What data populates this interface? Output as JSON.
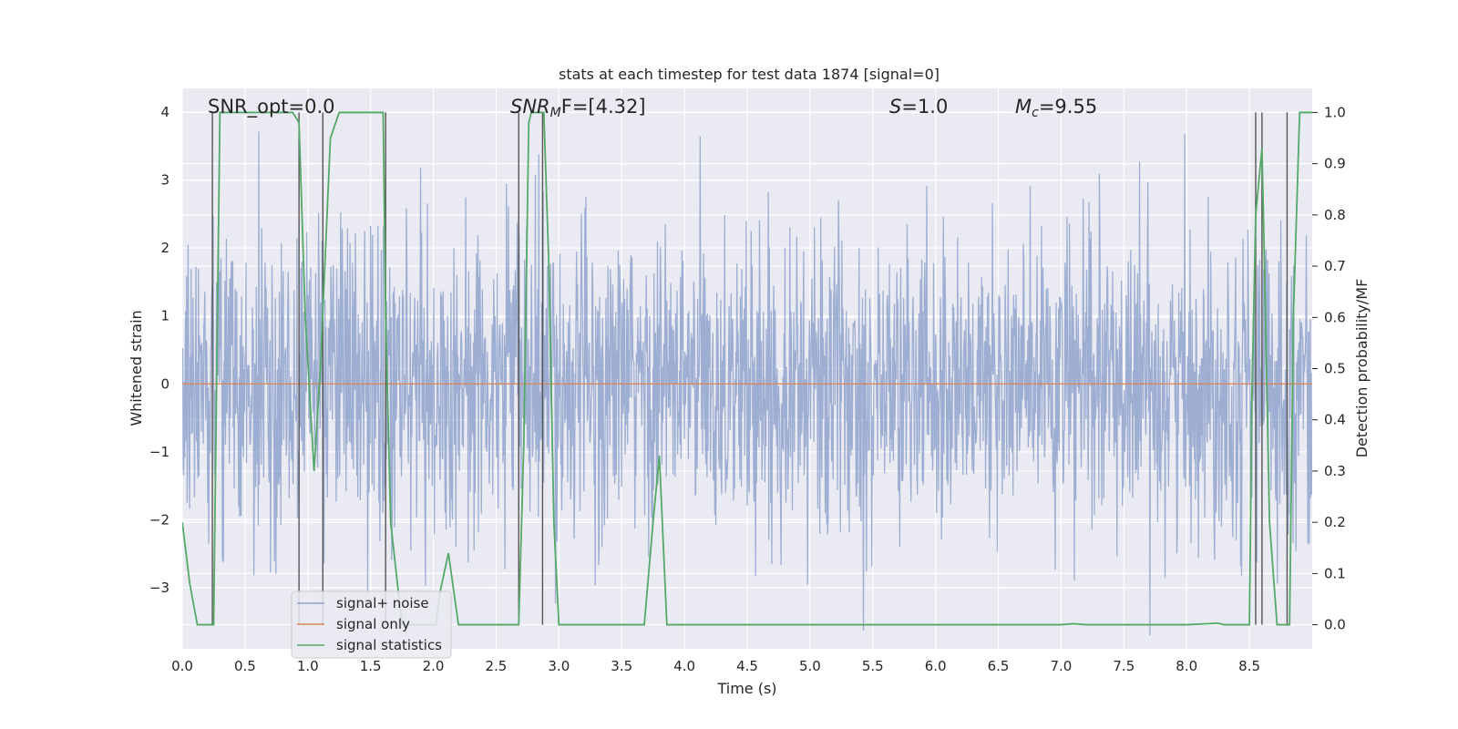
{
  "chart_data": {
    "type": "line",
    "title": "stats at each timestep for test data 1874 [signal=0]",
    "xlabel": "Time (s)",
    "ylabel_left": "Whitened strain",
    "ylabel_right": "Detection probability/MF",
    "xlim": [
      0.0,
      9.0
    ],
    "ylim_left": [
      -3.9,
      4.35
    ],
    "ylim_right": [
      -0.047,
      1.047
    ],
    "xticks": [
      "0.0",
      "0.5",
      "1.0",
      "1.5",
      "2.0",
      "2.5",
      "3.0",
      "3.5",
      "4.0",
      "4.5",
      "5.0",
      "5.5",
      "6.0",
      "6.5",
      "7.0",
      "7.5",
      "8.0",
      "8.5"
    ],
    "xtick_values": [
      0.0,
      0.5,
      1.0,
      1.5,
      2.0,
      2.5,
      3.0,
      3.5,
      4.0,
      4.5,
      5.0,
      5.5,
      6.0,
      6.5,
      7.0,
      7.5,
      8.0,
      8.5
    ],
    "yticks_left": [
      "4",
      "3",
      "2",
      "1",
      "0",
      "−1",
      "−2",
      "−3"
    ],
    "ytick_values_left": [
      4,
      3,
      2,
      1,
      0,
      -1,
      -2,
      -3
    ],
    "yticks_right": [
      "1.0",
      "0.9",
      "0.8",
      "0.7",
      "0.6",
      "0.5",
      "0.4",
      "0.3",
      "0.2",
      "0.1",
      "0.0"
    ],
    "ytick_values_right": [
      1.0,
      0.9,
      0.8,
      0.7,
      0.6,
      0.5,
      0.4,
      0.3,
      0.2,
      0.1,
      0.0
    ],
    "annotations": {
      "snr_opt": "SNR_opt=0.0",
      "snr_mf_base": "SNR",
      "snr_mf_sub": "M",
      "snr_mf_tail": "F=[4.32]",
      "s_label": "S",
      "s_value": "=1.0",
      "mc_base": "M",
      "mc_sub": "c",
      "mc_value": "=9.55"
    },
    "legend": {
      "position": "lower-left",
      "entries": [
        {
          "label": "signal+ noise",
          "color": "#8fa3cc"
        },
        {
          "label": "signal only",
          "color": "#dd8452"
        },
        {
          "label": "signal statistics",
          "color": "#55a868"
        }
      ]
    },
    "series": [
      {
        "name": "signal+ noise",
        "axis": "left",
        "kind": "noise",
        "sample_rate_hz": 256,
        "duration_s": 9.0,
        "std": 1.1,
        "color": "#8fa3cc"
      },
      {
        "name": "signal only",
        "axis": "left",
        "x": [
          0.0,
          9.0
        ],
        "y": [
          0.0,
          0.0
        ],
        "color": "#dd8452"
      },
      {
        "name": "signal statistics",
        "axis": "right",
        "color": "#55a868",
        "x": [
          0.0,
          0.06,
          0.12,
          0.22,
          0.25,
          0.3,
          0.6,
          0.88,
          0.93,
          0.98,
          1.05,
          1.1,
          1.18,
          1.25,
          1.32,
          1.45,
          1.6,
          1.62,
          1.66,
          1.75,
          1.88,
          2.02,
          2.05,
          2.12,
          2.2,
          2.68,
          2.72,
          2.76,
          2.78,
          2.88,
          2.92,
          2.96,
          3.0,
          3.05,
          3.5,
          3.68,
          3.75,
          3.8,
          3.86,
          4.0,
          6.0,
          7.0,
          7.1,
          7.2,
          8.0,
          8.25,
          8.3,
          8.5,
          8.52,
          8.55,
          8.6,
          8.62,
          8.66,
          8.72,
          8.82,
          8.85,
          8.9,
          8.94,
          9.0
        ],
        "y": [
          0.2,
          0.08,
          0.0,
          0.0,
          0.0,
          1.0,
          1.0,
          1.0,
          0.98,
          0.6,
          0.3,
          0.5,
          0.95,
          1.0,
          1.0,
          1.0,
          1.0,
          0.6,
          0.2,
          0.0,
          0.0,
          0.0,
          0.06,
          0.14,
          0.0,
          0.0,
          0.35,
          0.98,
          1.0,
          1.0,
          0.7,
          0.2,
          0.0,
          0.0,
          0.0,
          0.0,
          0.2,
          0.33,
          0.0,
          0.0,
          0.0,
          0.0,
          0.002,
          0.0,
          0.0,
          0.003,
          0.0,
          0.0,
          0.45,
          0.8,
          0.93,
          0.7,
          0.2,
          0.0,
          0.0,
          0.6,
          1.0,
          1.0,
          1.0
        ]
      }
    ],
    "vertical_markers_x": [
      0.24,
      0.93,
      1.12,
      1.62,
      2.68,
      2.87,
      8.55,
      8.6,
      8.8
    ]
  }
}
